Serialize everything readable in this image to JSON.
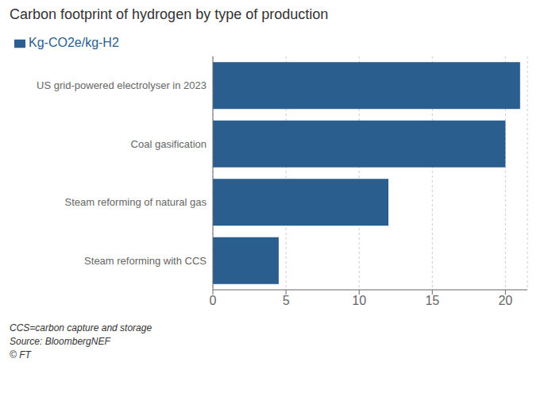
{
  "chart_data": {
    "type": "bar",
    "title": "Carbon footprint of hydrogen by type of production",
    "orientation": "horizontal",
    "categories": [
      "Steam reforming with CCS",
      "Steam reforming of natural gas",
      "Coal gasification",
      "US grid-powered electrolyser in 2023"
    ],
    "series": [
      {
        "name": "Kg-CO2e/kg-H2",
        "color": "#2a5e8e",
        "values": [
          4.5,
          12.0,
          20.0,
          21.0
        ]
      }
    ],
    "xlim": [
      0,
      21.5
    ],
    "xticks": [
      0,
      5,
      10,
      15,
      20
    ],
    "grid": true,
    "legend": "upper left",
    "annotations": [
      "CCS=carbon capture and storage",
      "Source: BloombergNEF",
      "© FT"
    ]
  }
}
